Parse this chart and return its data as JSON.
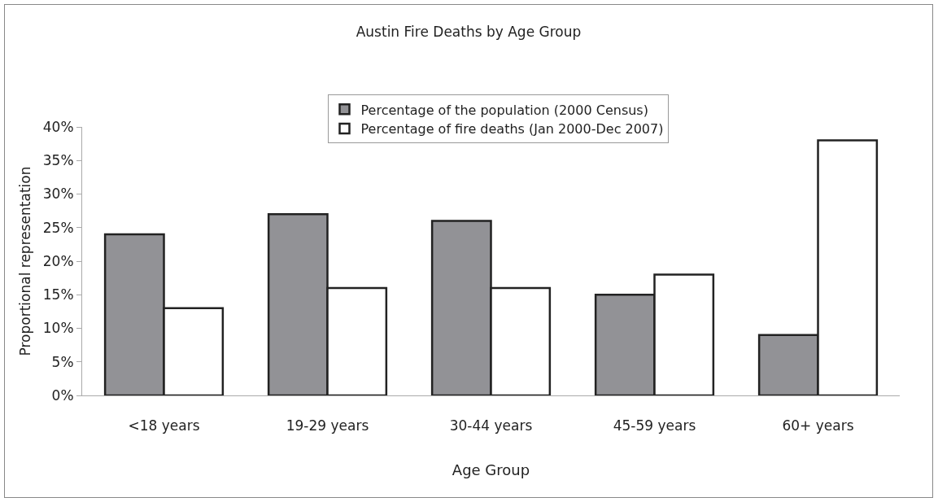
{
  "chart_data": {
    "type": "bar",
    "title": "Austin Fire Deaths by Age Group",
    "xlabel": "Age Group",
    "ylabel": "Proportional representation",
    "categories": [
      "<18 years",
      "19-29 years",
      "30-44 years",
      "45-59 years",
      "60+ years"
    ],
    "series": [
      {
        "name": "Percentage of the population (2000 Census)",
        "color": "#929296",
        "values": [
          24,
          27,
          26,
          15,
          9
        ]
      },
      {
        "name": "Percentage of fire deaths (Jan 2000-Dec 2007)",
        "color": "#ffffff",
        "values": [
          13,
          16,
          16,
          18,
          38
        ]
      }
    ],
    "ylim": [
      0,
      40
    ],
    "yticks": [
      {
        "value": 0,
        "label": "0%"
      },
      {
        "value": 5,
        "label": "5%"
      },
      {
        "value": 10,
        "label": "10%"
      },
      {
        "value": 15,
        "label": "15%"
      },
      {
        "value": 20,
        "label": "20%"
      },
      {
        "value": 25,
        "label": "25%"
      },
      {
        "value": 30,
        "label": "30%"
      },
      {
        "value": 35,
        "label": "35%"
      },
      {
        "value": 40,
        "label": "40%"
      }
    ],
    "grid": false,
    "legend": "top"
  }
}
